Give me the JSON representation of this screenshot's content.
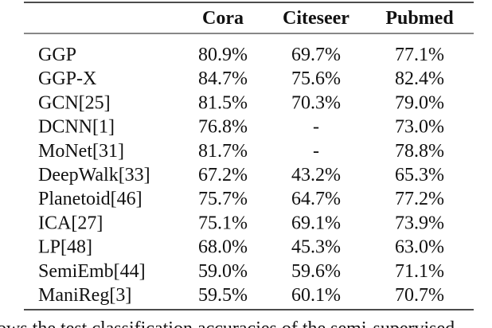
{
  "table": {
    "header": [
      "Cora",
      "Citeseer",
      "Pubmed"
    ],
    "rows": [
      [
        "GGP",
        "80.9%",
        "69.7%",
        "77.1%"
      ],
      [
        "GGP-X",
        "84.7%",
        "75.6%",
        "82.4%"
      ],
      [
        "GCN[25]",
        "81.5%",
        "70.3%",
        "79.0%"
      ],
      [
        "DCNN[1]",
        "76.8%",
        "-",
        "73.0%"
      ],
      [
        "MoNet[31]",
        "81.7%",
        "-",
        "78.8%"
      ],
      [
        "DeepWalk[33]",
        "67.2%",
        "43.2%",
        "65.3%"
      ],
      [
        "Planetoid[46]",
        "75.7%",
        "64.7%",
        "77.2%"
      ],
      [
        "ICA[27]",
        "75.1%",
        "69.1%",
        "73.9%"
      ],
      [
        "LP[48]",
        "68.0%",
        "45.3%",
        "63.0%"
      ],
      [
        "SemiEmb[44]",
        "59.0%",
        "59.6%",
        "71.1%"
      ],
      [
        "ManiReg[3]",
        "59.5%",
        "60.1%",
        "70.7%"
      ]
    ]
  },
  "caption": "ows the test classification accuracies of the semi-supervised"
}
